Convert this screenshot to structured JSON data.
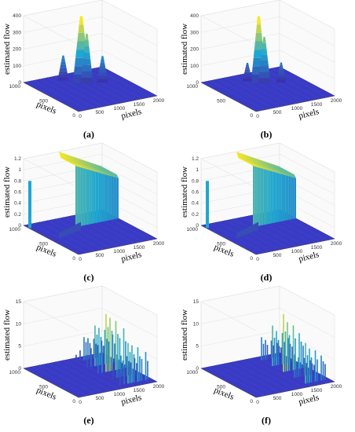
{
  "figure": {
    "panels": [
      "a",
      "b",
      "c",
      "d",
      "e",
      "f"
    ]
  },
  "colors": {
    "background": "#ffffff",
    "floor": "#3b3fcf",
    "low": "#3e26a8",
    "mid": "#1fa7d0",
    "high": "#f5e624",
    "grid": "#dddddd",
    "axis": "#555555"
  },
  "chart_data": [
    {
      "id": "a",
      "caption": "(a)",
      "type": "surface",
      "zlabel": "estimated flow",
      "xlabel": "pixels",
      "ylabel": "pixels",
      "xlim": [
        0,
        2000
      ],
      "ylim": [
        0,
        1000
      ],
      "zlim": [
        0,
        400
      ],
      "xticks": [
        "0",
        "500",
        "1000",
        "1500",
        "2000"
      ],
      "yticks": [
        "0",
        "500",
        "1000"
      ],
      "zticks": [
        "0",
        "100",
        "200",
        "300",
        "400"
      ],
      "peaks": [
        {
          "x": 1050,
          "y": 700,
          "z": 400,
          "w": 60
        },
        {
          "x": 1120,
          "y": 650,
          "z": 300,
          "w": 45
        },
        {
          "x": 800,
          "y": 850,
          "z": 150,
          "w": 40
        },
        {
          "x": 1450,
          "y": 600,
          "z": 160,
          "w": 40
        }
      ]
    },
    {
      "id": "b",
      "caption": "(b)",
      "type": "surface",
      "zlabel": "estimated flow",
      "xlabel": "pixels",
      "ylabel": "",
      "xlim": [
        0,
        2000
      ],
      "ylim": [
        0,
        1000
      ],
      "zlim": [
        0,
        400
      ],
      "xticks": [
        "0",
        "500",
        "1000",
        "1500",
        "2000"
      ],
      "yticks": [
        "0",
        "500",
        "1000"
      ],
      "zticks": [
        "0",
        "100",
        "200",
        "300",
        "400"
      ],
      "peaks": [
        {
          "x": 1050,
          "y": 700,
          "z": 400,
          "w": 55
        },
        {
          "x": 1120,
          "y": 650,
          "z": 280,
          "w": 45
        },
        {
          "x": 900,
          "y": 800,
          "z": 110,
          "w": 35
        },
        {
          "x": 1480,
          "y": 600,
          "z": 120,
          "w": 35
        }
      ]
    },
    {
      "id": "c",
      "caption": "(c)",
      "type": "surface",
      "zlabel": "estimated flow",
      "xlabel": "pixels",
      "ylabel": "pixels",
      "xlim": [
        0,
        2000
      ],
      "ylim": [
        0,
        1000
      ],
      "zlim": [
        0,
        1.2
      ],
      "xticks": [
        "0",
        "500",
        "1000",
        "1500",
        "2000"
      ],
      "yticks": [
        "0",
        "500",
        "1000"
      ],
      "zticks": [
        "0",
        "0.2",
        "0.4",
        "0.6",
        "0.8",
        "1",
        "1.2"
      ],
      "plateau": {
        "x0": 900,
        "x1": 2000,
        "y0": 700,
        "y1": 1000,
        "z": 1.2
      },
      "pillar": {
        "x": 20,
        "y": 900,
        "z": 0.85
      }
    },
    {
      "id": "d",
      "caption": "(d)",
      "type": "surface",
      "zlabel": "estimated flow",
      "xlabel": "pixels",
      "ylabel": "pixels",
      "xlim": [
        0,
        2000
      ],
      "ylim": [
        0,
        1000
      ],
      "zlim": [
        0,
        1.2
      ],
      "xticks": [
        "0",
        "500",
        "1000",
        "1500",
        "2000"
      ],
      "yticks": [
        "0",
        "500",
        "1000"
      ],
      "zticks": [
        "0",
        "0.2",
        "0.4",
        "0.6",
        "0.8",
        "1",
        "1.2"
      ],
      "plateau": {
        "x0": 900,
        "x1": 2000,
        "y0": 700,
        "y1": 1000,
        "z": 1.2
      },
      "pillar": {
        "x": 20,
        "y": 900,
        "z": 0.85
      }
    },
    {
      "id": "e",
      "caption": "(e)",
      "type": "surface",
      "zlabel": "estimated flow",
      "xlabel": "pixels",
      "ylabel": "pixels",
      "xlim": [
        0,
        2000
      ],
      "ylim": [
        0,
        1000
      ],
      "zlim": [
        0,
        15
      ],
      "xticks": [
        "0",
        "500",
        "1000",
        "1500",
        "2000"
      ],
      "yticks": [
        "0",
        "500",
        "1000"
      ],
      "zticks": [
        "0",
        "5",
        "10",
        "15"
      ],
      "spikes": [
        {
          "x": 1400,
          "z": 13
        },
        {
          "x": 1450,
          "z": 10
        },
        {
          "x": 1500,
          "z": 12
        },
        {
          "x": 1550,
          "z": 9
        },
        {
          "x": 1650,
          "z": 11
        },
        {
          "x": 1700,
          "z": 8
        },
        {
          "x": 1750,
          "z": 7
        },
        {
          "x": 1850,
          "z": 9
        },
        {
          "x": 1900,
          "z": 6
        },
        {
          "x": 1300,
          "z": 6
        },
        {
          "x": 1200,
          "z": 4
        }
      ]
    },
    {
      "id": "f",
      "caption": "(f)",
      "type": "surface",
      "zlabel": "estimated flow",
      "xlabel": "pixels",
      "ylabel": "pixels",
      "xlim": [
        0,
        2000
      ],
      "ylim": [
        0,
        1000
      ],
      "zlim": [
        0,
        15
      ],
      "xticks": [
        "0",
        "500",
        "1000",
        "1500",
        "2000"
      ],
      "yticks": [
        "0",
        "500",
        "1000"
      ],
      "zticks": [
        "0",
        "5",
        "10",
        "15"
      ],
      "spikes": [
        {
          "x": 1400,
          "z": 13
        },
        {
          "x": 1450,
          "z": 9
        },
        {
          "x": 1500,
          "z": 11
        },
        {
          "x": 1550,
          "z": 8
        },
        {
          "x": 1650,
          "z": 10
        },
        {
          "x": 1700,
          "z": 7
        },
        {
          "x": 1800,
          "z": 8
        },
        {
          "x": 1850,
          "z": 6
        },
        {
          "x": 1900,
          "z": 5
        }
      ]
    }
  ]
}
